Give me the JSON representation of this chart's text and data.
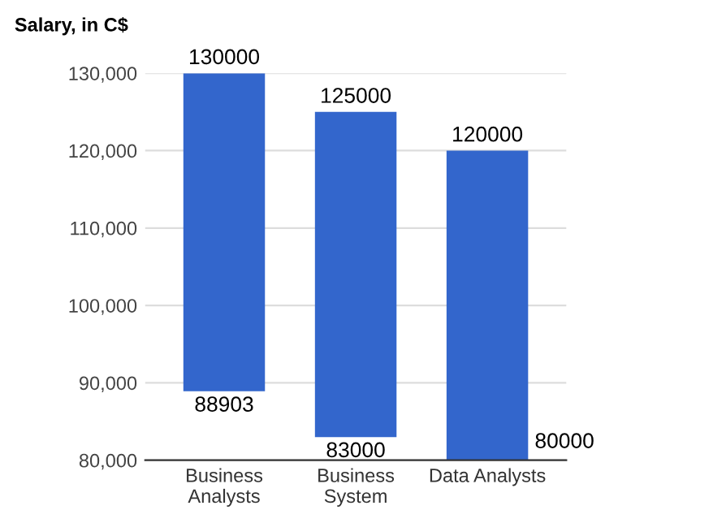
{
  "chart_data": {
    "type": "bar",
    "title": "Salary, in C$",
    "categories": [
      "Business\nAnalysts",
      "Business\nSystem",
      "Data Analysts"
    ],
    "base": [
      88903,
      83000,
      80000
    ],
    "values": [
      41097,
      42000,
      40000
    ],
    "color": "#3366cc",
    "ylim": [
      80000,
      130000
    ],
    "yticks": [
      {
        "value": 80000,
        "label": "80,000"
      },
      {
        "value": 90000,
        "label": "90,000"
      },
      {
        "value": 100000,
        "label": "100,000"
      },
      {
        "value": 110000,
        "label": "110,000"
      },
      {
        "value": 120000,
        "label": "120,000"
      },
      {
        "value": 130000,
        "label": "130,000"
      }
    ],
    "grid": "y",
    "annotations": [
      {
        "text": "130000",
        "x": "Business\nAnalysts",
        "y": 130000
      },
      {
        "text": "125000",
        "x": "Business\nSystem",
        "y": 125000
      },
      {
        "text": "120000",
        "x": "Data Analysts",
        "y": 120000
      },
      {
        "text": "88903",
        "x": "Business\nAnalysts",
        "y": 88903
      },
      {
        "text": "83000",
        "x": "Business\nSystem",
        "y": 83000
      },
      {
        "text": "80000",
        "x": "Data Analysts",
        "y": 80000
      }
    ]
  }
}
